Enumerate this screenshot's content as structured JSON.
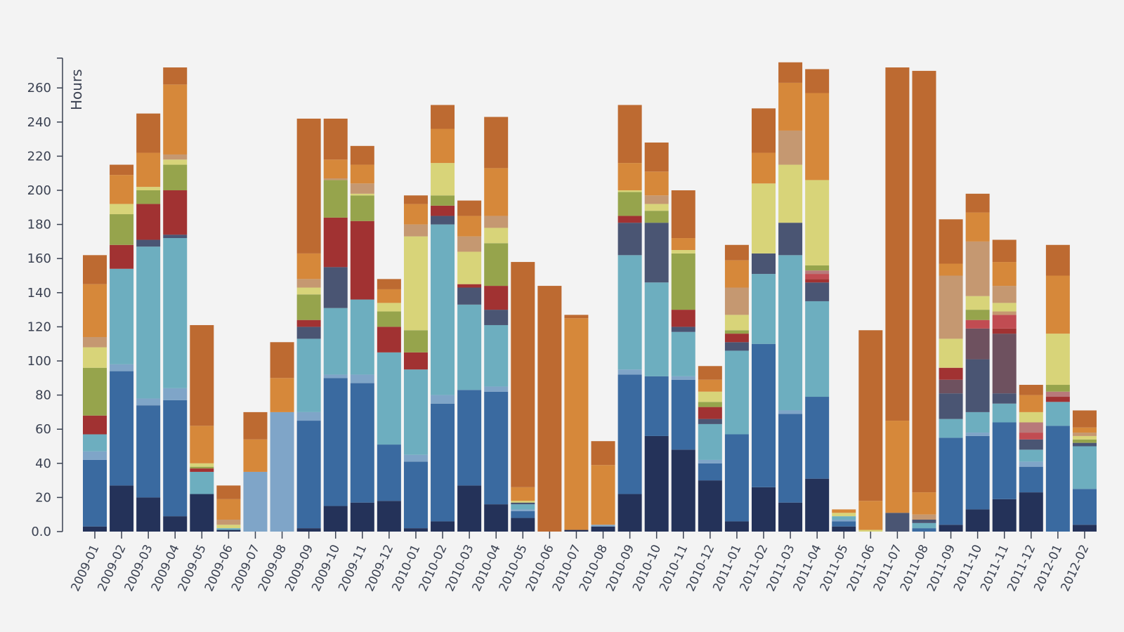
{
  "chart_data": {
    "type": "bar",
    "stacked": true,
    "ylabel": "Hours",
    "ylim": [
      0,
      275
    ],
    "yticks": [
      0,
      20,
      40,
      60,
      80,
      100,
      120,
      140,
      160,
      180,
      200,
      220,
      240,
      260
    ],
    "ytick_labels": [
      "0.0",
      "20",
      "40",
      "60",
      "80",
      "100",
      "120",
      "140",
      "160",
      "180",
      "200",
      "220",
      "240",
      "260"
    ],
    "grid": false,
    "legend": "none",
    "categories": [
      "2009-01",
      "2009-02",
      "2009-03",
      "2009-04",
      "2009-05",
      "2009-06",
      "2009-07",
      "2009-08",
      "2009-09",
      "2009-10",
      "2009-11",
      "2009-12",
      "2010-01",
      "2010-02",
      "2010-03",
      "2010-04",
      "2010-05",
      "2010-06",
      "2010-07",
      "2010-08",
      "2010-09",
      "2010-10",
      "2010-11",
      "2010-12",
      "2011-01",
      "2011-02",
      "2011-03",
      "2011-04",
      "2011-05",
      "2011-06",
      "2011-07",
      "2011-08",
      "2011-09",
      "2011-10",
      "2011-11",
      "2011-12",
      "2012-01",
      "2012-02"
    ],
    "segment_colors": [
      "#243259",
      "#3a6aa0",
      "#7fa5c8",
      "#6daebf",
      "#4a5573",
      "#a13232",
      "#c14c52",
      "#6e515f",
      "#96a44c",
      "#d8d479",
      "#c59871",
      "#d6883a",
      "#bd6a31",
      "#b8797a"
    ],
    "stacks": [
      [
        [
          0,
          3
        ],
        [
          1,
          39
        ],
        [
          2,
          5
        ],
        [
          3,
          10
        ],
        [
          5,
          11
        ],
        [
          8,
          28
        ],
        [
          9,
          12
        ],
        [
          10,
          6
        ],
        [
          11,
          31
        ],
        [
          12,
          17
        ]
      ],
      [
        [
          0,
          27
        ],
        [
          1,
          67
        ],
        [
          2,
          4
        ],
        [
          3,
          56
        ],
        [
          5,
          14
        ],
        [
          8,
          18
        ],
        [
          9,
          6
        ],
        [
          11,
          17
        ],
        [
          12,
          6
        ]
      ],
      [
        [
          0,
          20
        ],
        [
          1,
          54
        ],
        [
          2,
          4
        ],
        [
          3,
          89
        ],
        [
          4,
          4
        ],
        [
          5,
          21
        ],
        [
          8,
          8
        ],
        [
          9,
          2
        ],
        [
          11,
          20
        ],
        [
          12,
          23
        ]
      ],
      [
        [
          0,
          9
        ],
        [
          1,
          68
        ],
        [
          2,
          7
        ],
        [
          3,
          88
        ],
        [
          4,
          2
        ],
        [
          5,
          26
        ],
        [
          8,
          15
        ],
        [
          9,
          3
        ],
        [
          10,
          3
        ],
        [
          11,
          41
        ],
        [
          12,
          10
        ]
      ],
      [
        [
          0,
          22
        ],
        [
          3,
          13
        ],
        [
          5,
          2
        ],
        [
          8,
          1
        ],
        [
          9,
          2
        ],
        [
          11,
          22
        ],
        [
          12,
          59
        ]
      ],
      [
        [
          0,
          1
        ],
        [
          3,
          1
        ],
        [
          9,
          2
        ],
        [
          10,
          3
        ],
        [
          11,
          12
        ],
        [
          12,
          8
        ]
      ],
      [
        [
          2,
          35
        ],
        [
          11,
          19
        ],
        [
          12,
          16
        ]
      ],
      [
        [
          2,
          70
        ],
        [
          11,
          20
        ],
        [
          12,
          21
        ]
      ],
      [
        [
          0,
          2
        ],
        [
          1,
          63
        ],
        [
          2,
          5
        ],
        [
          3,
          43
        ],
        [
          4,
          7
        ],
        [
          5,
          4
        ],
        [
          8,
          15
        ],
        [
          9,
          4
        ],
        [
          10,
          5
        ],
        [
          11,
          15
        ],
        [
          12,
          79
        ]
      ],
      [
        [
          0,
          15
        ],
        [
          1,
          75
        ],
        [
          2,
          2
        ],
        [
          3,
          39
        ],
        [
          4,
          24
        ],
        [
          5,
          29
        ],
        [
          8,
          22
        ],
        [
          10,
          1
        ],
        [
          11,
          11
        ],
        [
          12,
          24
        ]
      ],
      [
        [
          0,
          17
        ],
        [
          1,
          70
        ],
        [
          2,
          5
        ],
        [
          3,
          44
        ],
        [
          5,
          46
        ],
        [
          8,
          15
        ],
        [
          9,
          1
        ],
        [
          10,
          6
        ],
        [
          11,
          11
        ],
        [
          12,
          11
        ]
      ],
      [
        [
          0,
          18
        ],
        [
          1,
          33
        ],
        [
          3,
          54
        ],
        [
          5,
          15
        ],
        [
          8,
          9
        ],
        [
          9,
          5
        ],
        [
          11,
          8
        ],
        [
          12,
          6
        ]
      ],
      [
        [
          0,
          2
        ],
        [
          1,
          39
        ],
        [
          2,
          4
        ],
        [
          3,
          50
        ],
        [
          5,
          10
        ],
        [
          8,
          13
        ],
        [
          9,
          55
        ],
        [
          10,
          7
        ],
        [
          11,
          12
        ],
        [
          12,
          5
        ]
      ],
      [
        [
          0,
          6
        ],
        [
          1,
          69
        ],
        [
          2,
          5
        ],
        [
          3,
          100
        ],
        [
          4,
          5
        ],
        [
          5,
          6
        ],
        [
          8,
          6
        ],
        [
          9,
          19
        ],
        [
          11,
          20
        ],
        [
          12,
          14
        ]
      ],
      [
        [
          0,
          27
        ],
        [
          1,
          56
        ],
        [
          3,
          50
        ],
        [
          4,
          10
        ],
        [
          5,
          2
        ],
        [
          9,
          19
        ],
        [
          10,
          9
        ],
        [
          11,
          12
        ],
        [
          12,
          9
        ]
      ],
      [
        [
          0,
          16
        ],
        [
          1,
          66
        ],
        [
          2,
          3
        ],
        [
          3,
          36
        ],
        [
          4,
          9
        ],
        [
          5,
          14
        ],
        [
          8,
          25
        ],
        [
          9,
          9
        ],
        [
          10,
          7
        ],
        [
          11,
          28
        ],
        [
          12,
          30
        ]
      ],
      [
        [
          0,
          8
        ],
        [
          1,
          4
        ],
        [
          2,
          1
        ],
        [
          3,
          3
        ],
        [
          4,
          1
        ],
        [
          9,
          1
        ],
        [
          11,
          8
        ],
        [
          12,
          132
        ]
      ],
      [
        [
          12,
          144
        ]
      ],
      [
        [
          0,
          1
        ],
        [
          11,
          124
        ],
        [
          12,
          2
        ]
      ],
      [
        [
          0,
          3
        ],
        [
          2,
          1
        ],
        [
          11,
          35
        ],
        [
          12,
          14
        ]
      ],
      [
        [
          0,
          22
        ],
        [
          1,
          70
        ],
        [
          2,
          3
        ],
        [
          3,
          67
        ],
        [
          4,
          19
        ],
        [
          5,
          4
        ],
        [
          8,
          14
        ],
        [
          9,
          1
        ],
        [
          11,
          16
        ],
        [
          12,
          34
        ]
      ],
      [
        [
          0,
          56
        ],
        [
          1,
          35
        ],
        [
          3,
          55
        ],
        [
          4,
          35
        ],
        [
          8,
          7
        ],
        [
          9,
          4
        ],
        [
          10,
          5
        ],
        [
          11,
          14
        ],
        [
          12,
          17
        ]
      ],
      [
        [
          0,
          48
        ],
        [
          1,
          41
        ],
        [
          2,
          2
        ],
        [
          3,
          26
        ],
        [
          4,
          3
        ],
        [
          5,
          10
        ],
        [
          8,
          33
        ],
        [
          9,
          2
        ],
        [
          11,
          7
        ],
        [
          12,
          28
        ]
      ],
      [
        [
          0,
          30
        ],
        [
          1,
          10
        ],
        [
          2,
          2
        ],
        [
          3,
          21
        ],
        [
          4,
          3
        ],
        [
          5,
          7
        ],
        [
          8,
          3
        ],
        [
          9,
          6
        ],
        [
          11,
          7
        ],
        [
          12,
          8
        ]
      ],
      [
        [
          0,
          6
        ],
        [
          1,
          51
        ],
        [
          3,
          49
        ],
        [
          4,
          5
        ],
        [
          5,
          5
        ],
        [
          8,
          2
        ],
        [
          9,
          9
        ],
        [
          10,
          16
        ],
        [
          11,
          16
        ],
        [
          12,
          9
        ]
      ],
      [
        [
          0,
          26
        ],
        [
          1,
          84
        ],
        [
          3,
          41
        ],
        [
          4,
          12
        ],
        [
          9,
          41
        ],
        [
          11,
          18
        ],
        [
          12,
          26
        ]
      ],
      [
        [
          0,
          17
        ],
        [
          1,
          52
        ],
        [
          2,
          2
        ],
        [
          3,
          91
        ],
        [
          4,
          19
        ],
        [
          9,
          34
        ],
        [
          10,
          20
        ],
        [
          11,
          28
        ],
        [
          12,
          12
        ]
      ],
      [
        [
          0,
          31
        ],
        [
          1,
          48
        ],
        [
          3,
          56
        ],
        [
          4,
          11
        ],
        [
          5,
          2
        ],
        [
          6,
          3
        ],
        [
          13,
          2
        ],
        [
          8,
          3
        ],
        [
          9,
          50
        ],
        [
          11,
          51
        ],
        [
          12,
          14
        ]
      ],
      [
        [
          0,
          3
        ],
        [
          1,
          3
        ],
        [
          2,
          1
        ],
        [
          3,
          2
        ],
        [
          9,
          2
        ],
        [
          11,
          2
        ]
      ],
      [
        [
          9,
          1
        ],
        [
          11,
          17
        ],
        [
          12,
          100
        ]
      ],
      [
        [
          4,
          11
        ],
        [
          11,
          54
        ],
        [
          12,
          207
        ]
      ],
      [
        [
          1,
          2
        ],
        [
          3,
          3
        ],
        [
          4,
          2
        ],
        [
          10,
          3
        ],
        [
          11,
          13
        ],
        [
          12,
          247
        ]
      ],
      [
        [
          0,
          4
        ],
        [
          1,
          51
        ],
        [
          3,
          11
        ],
        [
          4,
          15
        ],
        [
          7,
          8
        ],
        [
          5,
          7
        ],
        [
          9,
          17
        ],
        [
          10,
          37
        ],
        [
          11,
          7
        ],
        [
          12,
          26
        ]
      ],
      [
        [
          0,
          13
        ],
        [
          1,
          43
        ],
        [
          2,
          2
        ],
        [
          3,
          12
        ],
        [
          4,
          31
        ],
        [
          7,
          18
        ],
        [
          6,
          5
        ],
        [
          8,
          6
        ],
        [
          9,
          8
        ],
        [
          10,
          32
        ],
        [
          11,
          17
        ],
        [
          12,
          11
        ]
      ],
      [
        [
          0,
          19
        ],
        [
          1,
          45
        ],
        [
          3,
          11
        ],
        [
          4,
          6
        ],
        [
          7,
          35
        ],
        [
          5,
          3
        ],
        [
          6,
          8
        ],
        [
          10,
          2
        ],
        [
          9,
          5
        ],
        [
          10,
          10
        ],
        [
          11,
          14
        ],
        [
          12,
          13
        ]
      ],
      [
        [
          0,
          23
        ],
        [
          1,
          15
        ],
        [
          2,
          3
        ],
        [
          3,
          7
        ],
        [
          4,
          6
        ],
        [
          6,
          4
        ],
        [
          13,
          6
        ],
        [
          9,
          6
        ],
        [
          11,
          10
        ],
        [
          12,
          6
        ]
      ],
      [
        [
          1,
          62
        ],
        [
          3,
          14
        ],
        [
          5,
          3
        ],
        [
          13,
          3
        ],
        [
          8,
          4
        ],
        [
          9,
          30
        ],
        [
          11,
          34
        ],
        [
          12,
          18
        ]
      ],
      [
        [
          0,
          4
        ],
        [
          1,
          21
        ],
        [
          3,
          25
        ],
        [
          4,
          2
        ],
        [
          8,
          2
        ],
        [
          9,
          2
        ],
        [
          10,
          2
        ],
        [
          11,
          3
        ],
        [
          12,
          10
        ]
      ]
    ]
  }
}
